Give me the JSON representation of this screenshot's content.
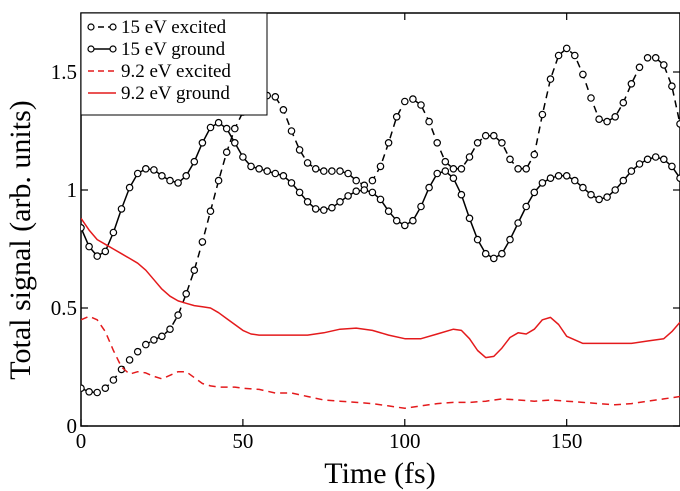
{
  "chart_data": {
    "type": "line",
    "title": "",
    "xlabel": "Time (fs)",
    "ylabel": "Total signal  (arb. units)",
    "xlim": [
      0,
      185
    ],
    "ylim": [
      0,
      1.75
    ],
    "grid": false,
    "legend_position": "top-left",
    "x_ticks": [
      {
        "value": 0,
        "label": "0"
      },
      {
        "value": 50,
        "label": "50"
      },
      {
        "value": 100,
        "label": "100"
      },
      {
        "value": 150,
        "label": "150"
      }
    ],
    "y_ticks": [
      {
        "value": 0,
        "label": "0"
      },
      {
        "value": 0.5,
        "label": "0.5"
      },
      {
        "value": 1,
        "label": "1"
      },
      {
        "value": 1.5,
        "label": "1.5"
      }
    ],
    "series": [
      {
        "name": "15 eV excited",
        "color": "#000000",
        "line_style": "dashed",
        "marker": "open-circle",
        "x": [
          0,
          2.5,
          5,
          7.5,
          10,
          12.5,
          15,
          17.5,
          20,
          22.5,
          25,
          27.5,
          30,
          32.5,
          35,
          37.5,
          40,
          42.5,
          45,
          47.5,
          50,
          52.5,
          55,
          57.5,
          60,
          62.5,
          65,
          67.5,
          70,
          72.5,
          75,
          77.5,
          80,
          82.5,
          85,
          87.5,
          90,
          92.5,
          95,
          97.5,
          100,
          102.5,
          105,
          107.5,
          110,
          112.5,
          115,
          117.5,
          120,
          122.5,
          125,
          127.5,
          130,
          132.5,
          135,
          137.5,
          140,
          142.5,
          145,
          147.5,
          150,
          152.5,
          155,
          157.5,
          160,
          162.5,
          165,
          167.5,
          170,
          172.5,
          175,
          177.5,
          180,
          182.5,
          185
        ],
        "y": [
          0.16,
          0.145,
          0.142,
          0.16,
          0.195,
          0.24,
          0.28,
          0.315,
          0.345,
          0.365,
          0.38,
          0.41,
          0.47,
          0.56,
          0.66,
          0.78,
          0.91,
          1.04,
          1.16,
          1.26,
          1.33,
          1.375,
          1.395,
          1.4,
          1.395,
          1.34,
          1.25,
          1.17,
          1.115,
          1.09,
          1.08,
          1.08,
          1.08,
          1.07,
          1.04,
          1.02,
          1.04,
          1.1,
          1.2,
          1.31,
          1.375,
          1.385,
          1.36,
          1.29,
          1.2,
          1.12,
          1.09,
          1.09,
          1.14,
          1.2,
          1.23,
          1.23,
          1.2,
          1.13,
          1.09,
          1.09,
          1.15,
          1.32,
          1.47,
          1.57,
          1.6,
          1.57,
          1.49,
          1.39,
          1.3,
          1.29,
          1.31,
          1.37,
          1.45,
          1.52,
          1.56,
          1.56,
          1.53,
          1.44,
          1.28
        ]
      },
      {
        "name": "15 eV ground",
        "color": "#000000",
        "line_style": "solid",
        "marker": "open-circle",
        "x": [
          0,
          2.5,
          5,
          7.5,
          10,
          12.5,
          15,
          17.5,
          20,
          22.5,
          25,
          27.5,
          30,
          32.5,
          35,
          37.5,
          40,
          42.5,
          45,
          47.5,
          50,
          52.5,
          55,
          57.5,
          60,
          62.5,
          65,
          67.5,
          70,
          72.5,
          75,
          77.5,
          80,
          82.5,
          85,
          87.5,
          90,
          92.5,
          95,
          97.5,
          100,
          102.5,
          105,
          107.5,
          110,
          112.5,
          115,
          117.5,
          120,
          122.5,
          125,
          127.5,
          130,
          132.5,
          135,
          137.5,
          140,
          142.5,
          145,
          147.5,
          150,
          152.5,
          155,
          157.5,
          160,
          162.5,
          165,
          167.5,
          170,
          172.5,
          175,
          177.5,
          180,
          182.5,
          185
        ],
        "y": [
          0.84,
          0.76,
          0.72,
          0.74,
          0.82,
          0.92,
          1.01,
          1.07,
          1.09,
          1.085,
          1.06,
          1.04,
          1.03,
          1.06,
          1.12,
          1.2,
          1.265,
          1.285,
          1.26,
          1.2,
          1.14,
          1.1,
          1.09,
          1.08,
          1.07,
          1.06,
          1.03,
          0.99,
          0.95,
          0.92,
          0.915,
          0.925,
          0.95,
          0.975,
          0.995,
          1.0,
          0.99,
          0.96,
          0.91,
          0.87,
          0.85,
          0.87,
          0.93,
          1.01,
          1.07,
          1.08,
          1.05,
          0.98,
          0.88,
          0.79,
          0.73,
          0.71,
          0.73,
          0.79,
          0.86,
          0.93,
          0.99,
          1.03,
          1.05,
          1.06,
          1.06,
          1.04,
          1.01,
          0.98,
          0.96,
          0.97,
          1.0,
          1.04,
          1.08,
          1.11,
          1.13,
          1.14,
          1.13,
          1.1,
          1.05
        ]
      },
      {
        "name": "9.2 eV excited",
        "color": "#e41a1c",
        "line_style": "dashed",
        "marker": "none",
        "x": [
          0,
          2.5,
          5,
          7.5,
          10,
          12.5,
          15,
          17.5,
          20,
          22.5,
          25,
          27.5,
          30,
          32.5,
          35,
          37.5,
          40,
          42.5,
          45,
          47.5,
          50,
          55,
          60,
          65,
          70,
          75,
          80,
          85,
          90,
          95,
          100,
          105,
          110,
          115,
          120,
          125,
          130,
          135,
          140,
          145,
          150,
          155,
          160,
          165,
          170,
          175,
          180,
          185
        ],
        "y": [
          0.45,
          0.465,
          0.45,
          0.4,
          0.32,
          0.25,
          0.22,
          0.23,
          0.225,
          0.21,
          0.2,
          0.215,
          0.23,
          0.23,
          0.205,
          0.18,
          0.17,
          0.165,
          0.165,
          0.165,
          0.16,
          0.155,
          0.14,
          0.14,
          0.125,
          0.11,
          0.105,
          0.1,
          0.095,
          0.085,
          0.075,
          0.085,
          0.095,
          0.1,
          0.1,
          0.105,
          0.115,
          0.11,
          0.105,
          0.11,
          0.105,
          0.1,
          0.095,
          0.09,
          0.095,
          0.105,
          0.115,
          0.125
        ]
      },
      {
        "name": "9.2 eV ground",
        "color": "#e41a1c",
        "line_style": "solid",
        "marker": "none",
        "x": [
          0,
          2.5,
          5,
          7.5,
          10,
          12.5,
          15,
          17.5,
          20,
          22.5,
          25,
          27.5,
          30,
          32.5,
          35,
          37.5,
          40,
          42.5,
          45,
          47.5,
          50,
          52.5,
          55,
          60,
          65,
          70,
          75,
          80,
          85,
          90,
          95,
          100,
          105,
          110,
          115,
          117.5,
          120,
          122.5,
          125,
          127.5,
          130,
          132.5,
          135,
          137.5,
          140,
          142.5,
          145,
          147.5,
          150,
          155,
          160,
          165,
          170,
          175,
          180,
          182.5,
          185
        ],
        "y": [
          0.88,
          0.83,
          0.79,
          0.77,
          0.75,
          0.73,
          0.71,
          0.69,
          0.66,
          0.62,
          0.58,
          0.55,
          0.53,
          0.52,
          0.51,
          0.505,
          0.5,
          0.48,
          0.455,
          0.43,
          0.405,
          0.39,
          0.385,
          0.385,
          0.385,
          0.385,
          0.395,
          0.41,
          0.415,
          0.405,
          0.385,
          0.37,
          0.37,
          0.39,
          0.41,
          0.405,
          0.37,
          0.32,
          0.29,
          0.295,
          0.33,
          0.375,
          0.395,
          0.39,
          0.41,
          0.45,
          0.46,
          0.43,
          0.38,
          0.35,
          0.35,
          0.35,
          0.35,
          0.36,
          0.37,
          0.4,
          0.44
        ]
      }
    ]
  }
}
